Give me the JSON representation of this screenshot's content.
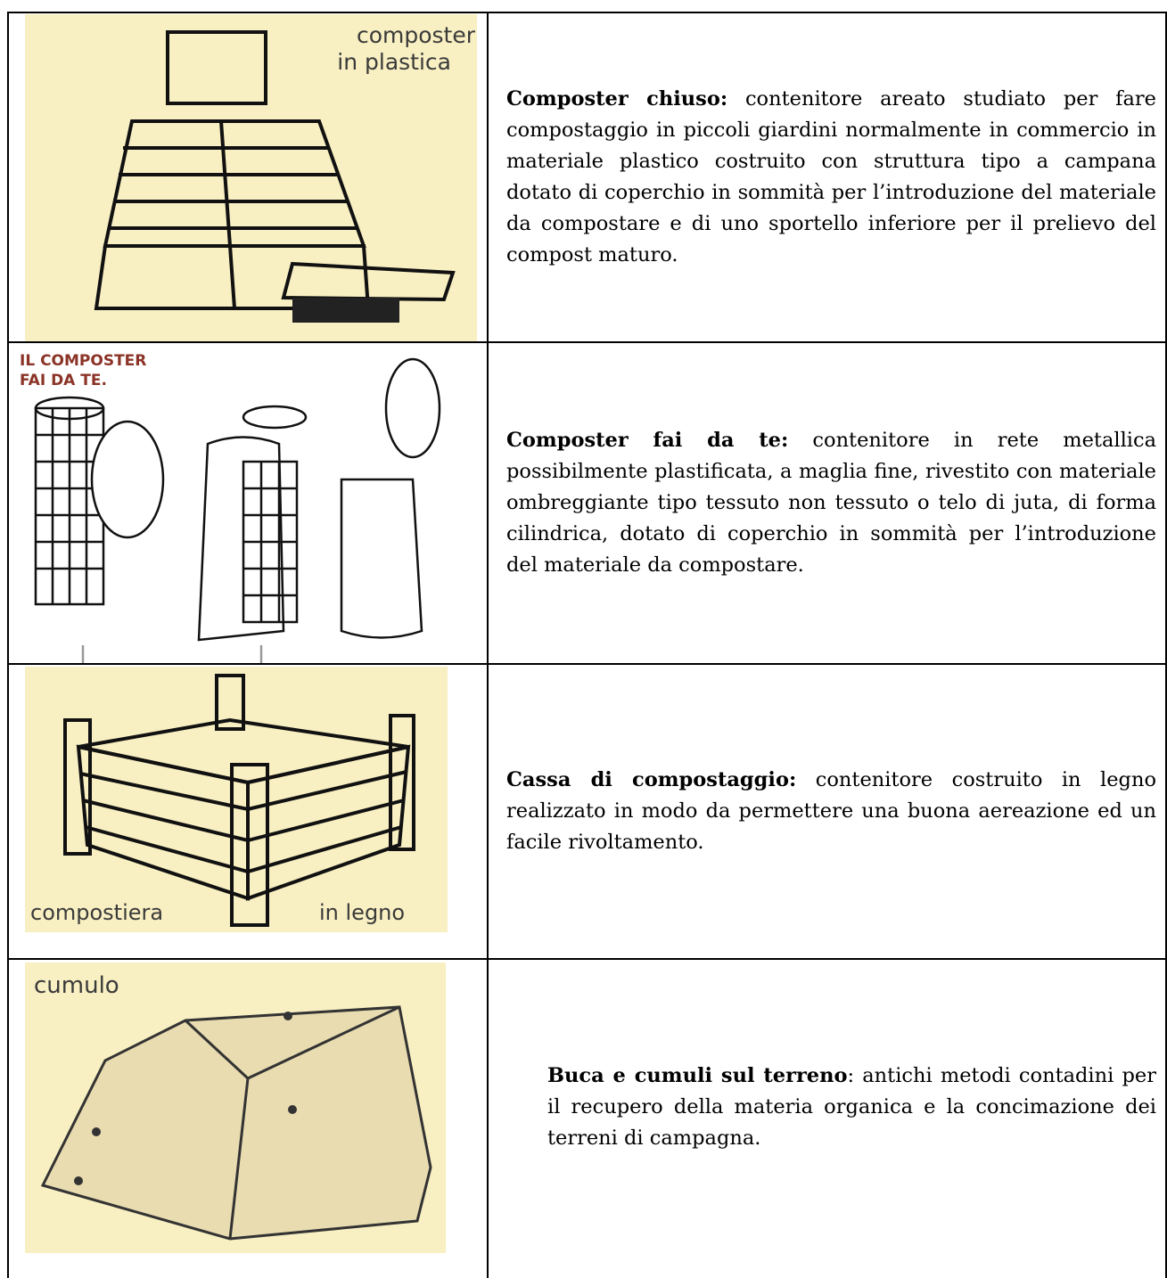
{
  "table": {
    "rows": [
      {
        "image_label": [
          "composter",
          "in plastica"
        ],
        "term": "Composter chiuso:",
        "description": " contenitore areato studiato per fare compostaggio in piccoli giardini normalmente in commercio in materiale plastico costruito con struttura tipo a campana dotato di coperchio in sommità per l’introduzione del materiale da compostare e di uno sportello inferiore per il prelievo del compost maturo."
      },
      {
        "image_label": [
          "IL COMPOSTER",
          "FAI DA TE."
        ],
        "term": "Composter fai da te:",
        "description": " contenitore in rete metallica possibilmente plastificata, a maglia fine, rivestito con materiale ombreggiante tipo tessuto non tessuto o telo di juta, di forma cilindrica, dotato di coperchio in sommità per l’introduzione del materiale da compostare."
      },
      {
        "image_label": [
          "compostiera",
          "in legno"
        ],
        "term": "Cassa di compostaggio:",
        "description": " contenitore costruito in legno realizzato in modo da permettere una buona aereazione ed un facile rivoltamento."
      },
      {
        "image_label": [
          "cumulo"
        ],
        "term": "Buca e cumuli sul terreno",
        "description": ": antichi metodi contadini per il recupero della materia organica e la concimazione dei terreni di campagna."
      }
    ]
  }
}
